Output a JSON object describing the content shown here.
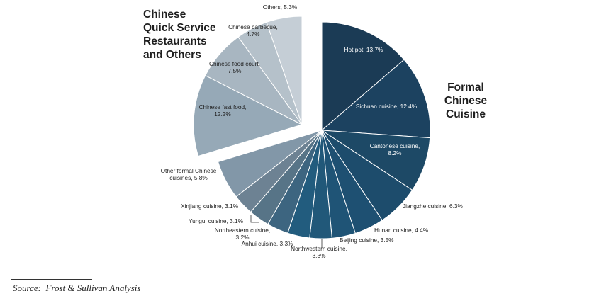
{
  "groups": {
    "qsr_title": [
      "Chinese",
      "Quick Service",
      "Restaurants",
      "and Others"
    ],
    "formal_title": [
      "Formal",
      "Chinese",
      "Cuisine"
    ]
  },
  "source": {
    "label": "Source:",
    "text": "Frost & Sullivan Analysis"
  },
  "colors": {
    "formal_dark": "#1b3e58",
    "formal_mid": "#1f5a7c",
    "formal_light": "#8297a8",
    "qsr_1": "#96a9b7",
    "qsr_2": "#a8b6c1",
    "qsr_3": "#b5c1ca",
    "qsr_4": "#c5ced6"
  },
  "chart_data": {
    "type": "pie",
    "title": "",
    "start_angle": "12 o'clock, clockwise",
    "slices": [
      {
        "label": "Hot pot, 13.7%",
        "group": "formal",
        "value": 13.7,
        "color": "#1b3b55"
      },
      {
        "label": "Sichuan cuisine, 12.4%",
        "group": "formal",
        "value": 12.4,
        "color": "#1c4260"
      },
      {
        "label": "Cantonese cuisine, 8.2%",
        "group": "formal",
        "value": 8.2,
        "color": "#1d4966"
      },
      {
        "label": "Jiangzhe cuisine, 6.3%",
        "group": "formal",
        "value": 6.3,
        "color": "#1d4c6c"
      },
      {
        "label": "Hunan cuisine, 4.4%",
        "group": "formal",
        "value": 4.4,
        "color": "#1e5072"
      },
      {
        "label": "Beijing cuisine, 3.5%",
        "group": "formal",
        "value": 3.5,
        "color": "#1f5476"
      },
      {
        "label": "Northwestern cuisine, 3.3%",
        "group": "formal",
        "value": 3.3,
        "color": "#215879"
      },
      {
        "label": "Anhui cuisine, 3.3%",
        "group": "formal",
        "value": 3.3,
        "color": "#225c7e"
      },
      {
        "label": "Northeastern cuisine, 3.2%",
        "group": "formal",
        "value": 3.2,
        "color": "#3d6580"
      },
      {
        "label": "Yungui cuisine, 3.1%",
        "group": "formal",
        "value": 3.1,
        "color": "#577487"
      },
      {
        "label": "Xinjiang cuisine, 3.1%",
        "group": "formal",
        "value": 3.1,
        "color": "#6d8293"
      },
      {
        "label": "Other formal Chinese cuisines, 5.8%",
        "group": "formal",
        "value": 5.8,
        "color": "#8297a8"
      },
      {
        "label": "Chinese fast food, 12.2%",
        "group": "qsr",
        "value": 12.2,
        "color": "#96a9b7"
      },
      {
        "label": "Chinese food court, 7.5%",
        "group": "qsr",
        "value": 7.5,
        "color": "#a8b6c1"
      },
      {
        "label": "Chinese barbecue, 4.7%",
        "group": "qsr",
        "value": 4.7,
        "color": "#b5c1ca"
      },
      {
        "label": "Others, 5.3%",
        "group": "qsr",
        "value": 5.3,
        "color": "#c5ced6"
      }
    ]
  }
}
